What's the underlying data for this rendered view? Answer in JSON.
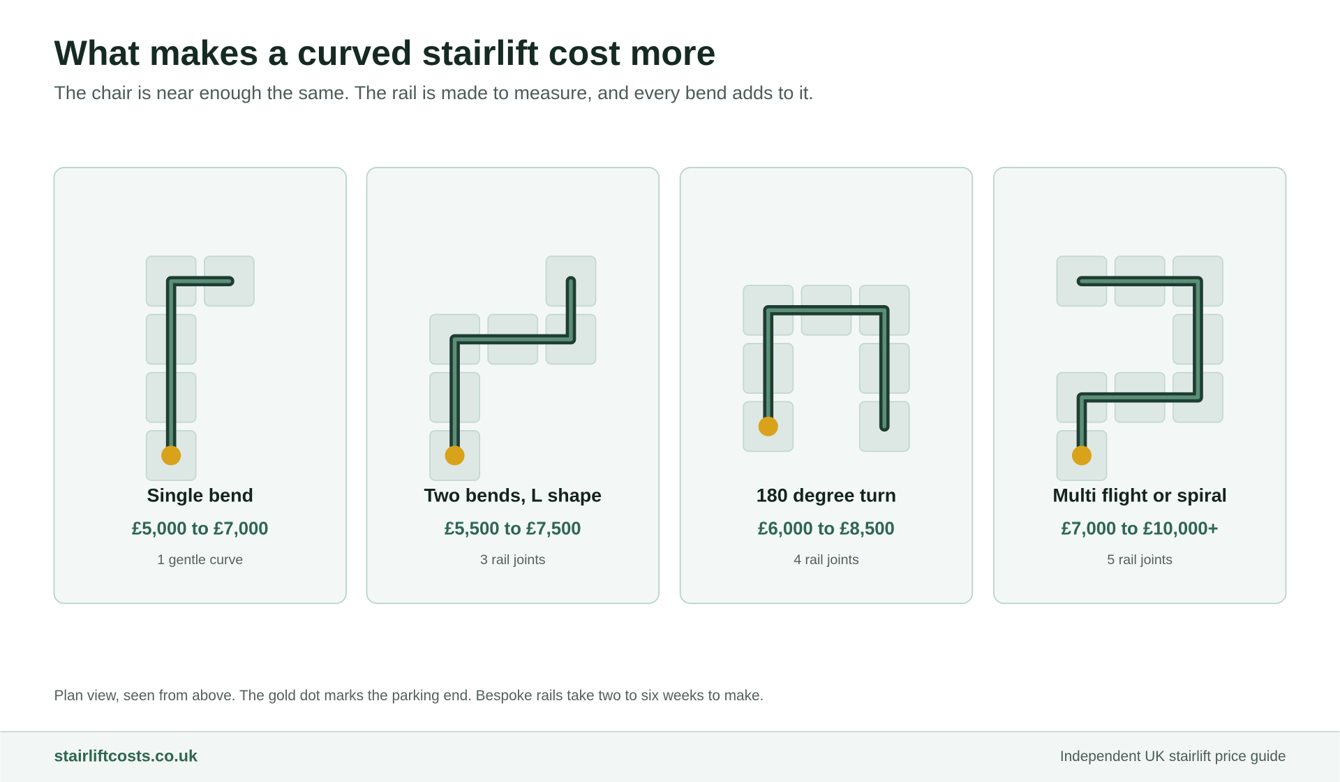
{
  "header": {
    "title": "What makes a curved stairlift cost more",
    "subtitle": "The chair is near enough the same. The rail is made to measure, and every bend adds to it."
  },
  "cards": [
    {
      "label": "Single bend",
      "price": "£5,000 to £7,000",
      "note": "1 gentle curve"
    },
    {
      "label": "Two bends, L shape",
      "price": "£5,500 to £7,500",
      "note": "3 rail joints"
    },
    {
      "label": "180 degree turn",
      "price": "£6,000 to £8,500",
      "note": "4 rail joints"
    },
    {
      "label": "Multi flight or spiral",
      "price": "£7,000 to £10,000+",
      "note": "5 rail joints"
    }
  ],
  "caption": "Plan view, seen from above. The gold dot marks the parking end. Bespoke rails take two to six weeks to make.",
  "footer": {
    "site": "stairliftcosts.co.uk",
    "tagline": "Independent UK stairlift price guide"
  }
}
